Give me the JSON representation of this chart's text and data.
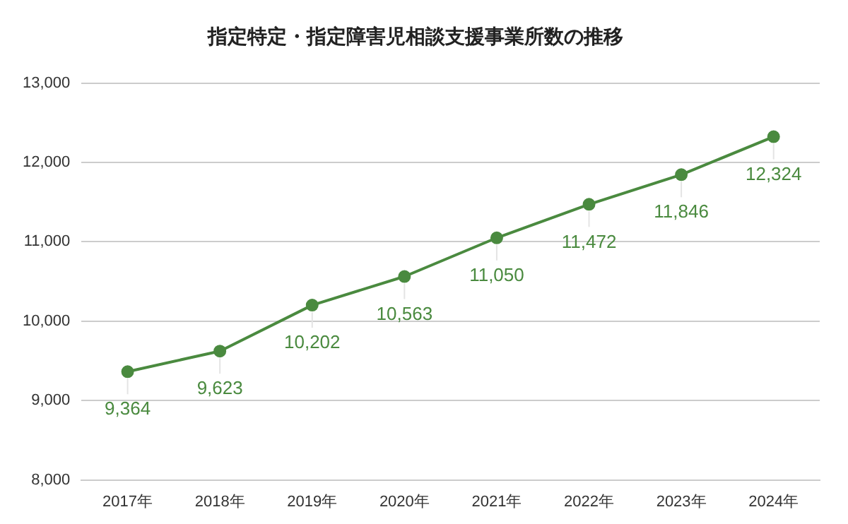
{
  "chart_data": {
    "type": "line",
    "title": "指定特定・指定障害児相談支援事業所数の推移",
    "categories": [
      "2017年",
      "2018年",
      "2019年",
      "2020年",
      "2021年",
      "2022年",
      "2023年",
      "2024年"
    ],
    "series": [
      {
        "color": "#4a8a3f",
        "values": [
          9364,
          9623,
          10202,
          10563,
          11050,
          11472,
          11846,
          12324
        ],
        "value_labels": [
          "9,364",
          "9,623",
          "10,202",
          "10,563",
          "11,050",
          "11,472",
          "11,846",
          "12,324"
        ]
      }
    ],
    "ylim": [
      8000,
      13000
    ],
    "yticks": [
      {
        "value": 8000,
        "label": "8,000"
      },
      {
        "value": 9000,
        "label": "9,000"
      },
      {
        "value": 10000,
        "label": "10,000"
      },
      {
        "value": 11000,
        "label": "11,000"
      },
      {
        "value": 12000,
        "label": "12,000"
      },
      {
        "value": 13000,
        "label": "13,000"
      }
    ],
    "grid": "y",
    "legend": false,
    "marker": "circle",
    "line_style": "solid"
  }
}
